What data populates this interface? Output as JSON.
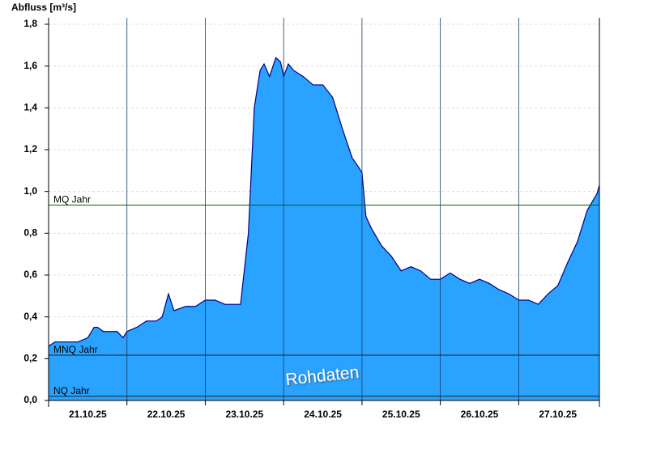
{
  "chart_data": {
    "type": "area",
    "y_label": "Abfluss [m³/s]",
    "annotation": "Rohdaten",
    "color": "#29a3ff",
    "line_color": "#000080",
    "xlim": [
      0,
      7.03
    ],
    "xticks": [
      {
        "value": 0.5,
        "label": "21.10.25"
      },
      {
        "value": 1.5,
        "label": "22.10.25"
      },
      {
        "value": 2.5,
        "label": "23.10.25"
      },
      {
        "value": 3.5,
        "label": "24.10.25"
      },
      {
        "value": 4.5,
        "label": "25.10.25"
      },
      {
        "value": 5.5,
        "label": "26.10.25"
      },
      {
        "value": 6.5,
        "label": "27.10.25"
      }
    ],
    "xgrid": [
      1,
      2,
      3,
      4,
      5,
      6
    ],
    "ylim": [
      0,
      1.8
    ],
    "yticks": [
      {
        "value": 0,
        "label": "0,0"
      },
      {
        "value": 0.2,
        "label": "0,2"
      },
      {
        "value": 0.4,
        "label": "0,4"
      },
      {
        "value": 0.6,
        "label": "0,6"
      },
      {
        "value": 0.8,
        "label": "0,8"
      },
      {
        "value": 1.0,
        "label": "1,0"
      },
      {
        "value": 1.2,
        "label": "1,2"
      },
      {
        "value": 1.4,
        "label": "1,4"
      },
      {
        "value": 1.6,
        "label": "1,6"
      },
      {
        "value": 1.8,
        "label": "1,8"
      }
    ],
    "grid": true,
    "reference_lines": [
      {
        "label": "MQ Jahr",
        "value": 0.935,
        "color": "#006400"
      },
      {
        "label": "MNQ Jahr",
        "value": 0.217,
        "color": "#202020"
      },
      {
        "label": "NQ Jahr",
        "value": 0.02,
        "color": "#202020"
      }
    ],
    "x": [
      0,
      0.08,
      0.125,
      0.25,
      0.375,
      0.5,
      0.58,
      0.625,
      0.7,
      0.75,
      0.875,
      0.95,
      1.0,
      1.125,
      1.25,
      1.375,
      1.45,
      1.53,
      1.6,
      1.75,
      1.875,
      2.0,
      2.125,
      2.25,
      2.375,
      2.45,
      2.55,
      2.625,
      2.7,
      2.75,
      2.82,
      2.9,
      2.96,
      3.0,
      3.06,
      3.125,
      3.25,
      3.375,
      3.5,
      3.625,
      3.75,
      3.875,
      3.95,
      4.0,
      4.05,
      4.125,
      4.25,
      4.375,
      4.5,
      4.625,
      4.75,
      4.875,
      5.0,
      5.125,
      5.25,
      5.375,
      5.5,
      5.625,
      5.75,
      5.875,
      6.0,
      6.125,
      6.25,
      6.375,
      6.5,
      6.625,
      6.75,
      6.875,
      7.0,
      7.03
    ],
    "values": [
      0.26,
      0.28,
      0.28,
      0.28,
      0.28,
      0.3,
      0.35,
      0.35,
      0.33,
      0.33,
      0.33,
      0.3,
      0.33,
      0.35,
      0.38,
      0.38,
      0.4,
      0.51,
      0.43,
      0.45,
      0.45,
      0.48,
      0.48,
      0.46,
      0.46,
      0.46,
      0.8,
      1.4,
      1.58,
      1.61,
      1.55,
      1.64,
      1.62,
      1.55,
      1.61,
      1.58,
      1.55,
      1.51,
      1.51,
      1.45,
      1.3,
      1.16,
      1.12,
      1.09,
      0.88,
      0.82,
      0.74,
      0.69,
      0.62,
      0.64,
      0.62,
      0.58,
      0.58,
      0.61,
      0.58,
      0.56,
      0.58,
      0.56,
      0.53,
      0.51,
      0.48,
      0.48,
      0.46,
      0.51,
      0.55,
      0.66,
      0.76,
      0.91,
      0.99,
      1.03
    ]
  }
}
